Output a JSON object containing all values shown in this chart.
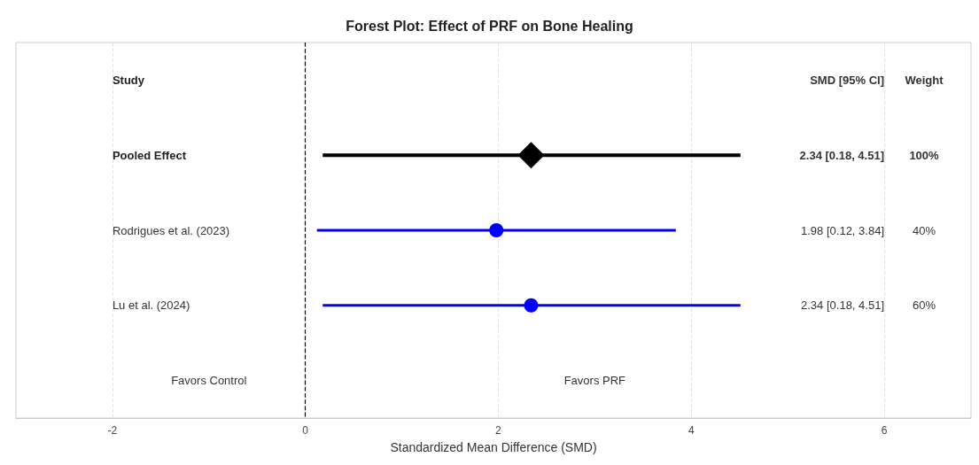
{
  "chart_data": {
    "type": "scatter",
    "title": "Forest Plot: Effect of PRF on Bone Healing",
    "xlabel": "Standardized Mean Difference (SMD)",
    "orientation": "horizontal",
    "categories": [
      "Study",
      "Pooled Effect",
      "Rodrigues et al. (2023)",
      "Lu et al. (2024)",
      null
    ],
    "series": [
      {
        "color": "#000000",
        "marker": "diamond",
        "values": [
          null,
          2.34,
          null,
          null,
          null
        ],
        "errors": [
          null,
          [
            0.18,
            4.51
          ],
          null,
          null,
          null
        ]
      },
      {
        "color": "#0000ff",
        "marker": "circle",
        "values": [
          null,
          null,
          1.98,
          2.34,
          null
        ],
        "errors": [
          null,
          null,
          [
            0.12,
            3.84
          ],
          [
            0.18,
            4.51
          ],
          null
        ]
      }
    ],
    "xlim": [
      -3,
      6.9
    ],
    "xticks": [
      -2,
      0,
      2,
      4,
      6
    ],
    "ref_lines": [
      {
        "axis": "x",
        "value": 0,
        "color": "#000000",
        "line_style": "dashed"
      }
    ],
    "grid": "x",
    "annotations": [
      "SMD [95% CI]",
      "Weight",
      "2.34 [0.18, 4.51]",
      "100%",
      "1.98 [0.12, 3.84]",
      "40%",
      "2.34 [0.18, 4.51]",
      "60%",
      "Favors Control",
      "Favors PRF"
    ]
  }
}
